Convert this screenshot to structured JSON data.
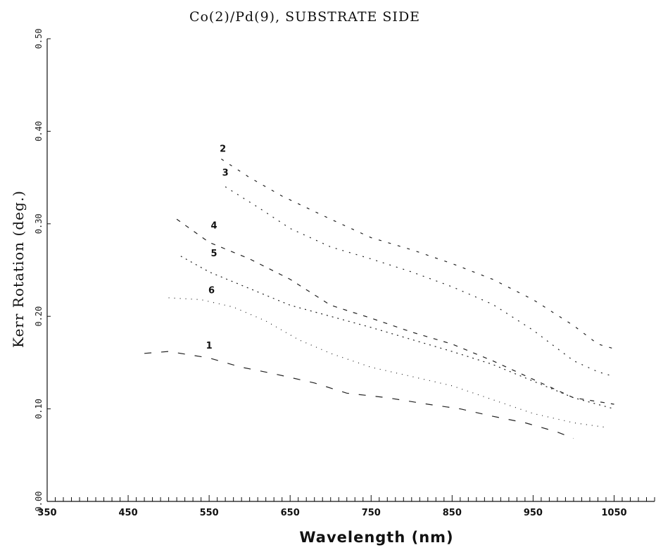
{
  "chart_data": {
    "type": "line",
    "title": "Co(2)/Pd(9), SUBSTRATE SIDE",
    "xlabel": "Wavelength (nm)",
    "ylabel": "Kerr Rotation (deg.)",
    "xlim": [
      350,
      1100
    ],
    "ylim": [
      0.0,
      0.5
    ],
    "x_tick_labels": [
      "350",
      "450",
      "550",
      "650",
      "750",
      "850",
      "950",
      "1050"
    ],
    "y_tick_labels": [
      "0.00",
      "0.10",
      "0.20",
      "0.30",
      "0.40",
      "0.50"
    ],
    "grid": false,
    "legend": "none",
    "series": [
      {
        "name": "1",
        "x": [
          470,
          500,
          550,
          590,
          630,
          680,
          720,
          770,
          820,
          860,
          900,
          940,
          980,
          1000
        ],
        "y": [
          0.16,
          0.162,
          0.155,
          0.145,
          0.138,
          0.128,
          0.117,
          0.112,
          0.105,
          0.1,
          0.092,
          0.085,
          0.075,
          0.068
        ]
      },
      {
        "name": "2",
        "x": [
          565,
          600,
          640,
          700,
          750,
          800,
          850,
          900,
          950,
          1000,
          1030,
          1050
        ],
        "y": [
          0.37,
          0.35,
          0.33,
          0.305,
          0.285,
          0.272,
          0.257,
          0.24,
          0.218,
          0.19,
          0.17,
          0.165
        ]
      },
      {
        "name": "3",
        "x": [
          570,
          610,
          650,
          700,
          750,
          800,
          850,
          900,
          950,
          1000,
          1030,
          1050
        ],
        "y": [
          0.34,
          0.318,
          0.295,
          0.275,
          0.262,
          0.248,
          0.232,
          0.213,
          0.185,
          0.152,
          0.14,
          0.135
        ]
      },
      {
        "name": "4",
        "x": [
          510,
          550,
          600,
          650,
          700,
          750,
          800,
          850,
          900,
          950,
          1000,
          1050
        ],
        "y": [
          0.305,
          0.28,
          0.262,
          0.24,
          0.212,
          0.198,
          0.183,
          0.17,
          0.152,
          0.132,
          0.112,
          0.105
        ]
      },
      {
        "name": "5",
        "x": [
          515,
          550,
          600,
          650,
          700,
          750,
          800,
          850,
          900,
          950,
          1000,
          1050
        ],
        "y": [
          0.265,
          0.248,
          0.23,
          0.212,
          0.2,
          0.188,
          0.175,
          0.162,
          0.148,
          0.13,
          0.112,
          0.1
        ]
      },
      {
        "name": "6",
        "x": [
          500,
          540,
          580,
          620,
          660,
          700,
          750,
          800,
          850,
          900,
          950,
          1000,
          1040
        ],
        "y": [
          0.22,
          0.218,
          0.21,
          0.195,
          0.175,
          0.16,
          0.145,
          0.135,
          0.125,
          0.11,
          0.095,
          0.085,
          0.08
        ]
      }
    ]
  }
}
